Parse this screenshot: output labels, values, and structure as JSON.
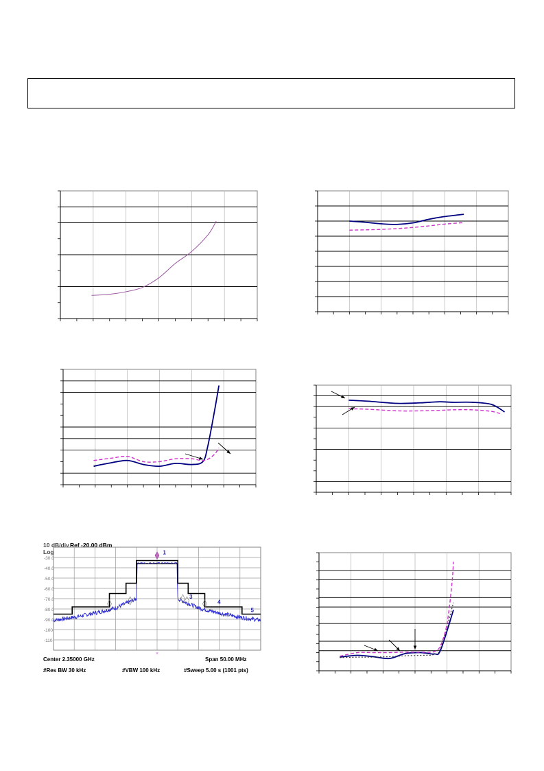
{
  "colors": {
    "navy": "#000080",
    "magenta": "#cc33cc",
    "purple": "#99569f",
    "blue_trace": "#2a2ad0",
    "grid_major": "#000000",
    "grid_minor": "#bdbdbd",
    "spectrum_grid": "#9a9a9a",
    "spectrum_border": "#808080"
  },
  "header": {
    "text": ""
  },
  "spectrum": {
    "scale_label": "10 dB/div",
    "ref_label": "Ref -20.00 dBm",
    "log_label": "Log",
    "y_ticks": [
      "-30.0",
      "-40.0",
      "-50.0",
      "-60.0",
      "-70.0",
      "-80.0",
      "-90.0",
      "-100",
      "-110"
    ],
    "marker_labels": [
      "1",
      "3",
      "4",
      "5"
    ],
    "center_label": "Center 2.35000 GHz",
    "span_label": "Span 50.00 MHz",
    "res_bw_label": "#Res BW 30 kHz",
    "vbw_label": "#VBW 100 kHz",
    "sweep_label": "#Sweep  5.00 s (1001 pts)"
  },
  "chart_data": [
    {
      "type": "line",
      "id": "chart-top-left",
      "xlim": [
        0,
        6
      ],
      "ylim": [
        0,
        8
      ],
      "series": [
        {
          "color": "purple",
          "points": [
            [
              0.95,
              1.45
            ],
            [
              1.5,
              1.52
            ],
            [
              2.0,
              1.68
            ],
            [
              2.5,
              1.95
            ],
            [
              3.0,
              2.55
            ],
            [
              3.5,
              3.45
            ],
            [
              4.0,
              4.2
            ],
            [
              4.5,
              5.25
            ],
            [
              4.75,
              6.1
            ]
          ]
        }
      ]
    },
    {
      "type": "line",
      "id": "chart-top-right",
      "xlim": [
        0,
        6
      ],
      "ylim": [
        0,
        8
      ],
      "series": [
        {
          "color": "navy",
          "style": "solid",
          "points": [
            [
              1.0,
              6.0
            ],
            [
              1.5,
              5.92
            ],
            [
              2.0,
              5.82
            ],
            [
              2.5,
              5.78
            ],
            [
              3.0,
              5.88
            ],
            [
              3.5,
              6.12
            ],
            [
              4.0,
              6.3
            ],
            [
              4.6,
              6.45
            ]
          ]
        },
        {
          "color": "magenta",
          "style": "dashed",
          "points": [
            [
              1.0,
              5.4
            ],
            [
              1.5,
              5.42
            ],
            [
              2.0,
              5.45
            ],
            [
              2.5,
              5.5
            ],
            [
              3.0,
              5.58
            ],
            [
              3.5,
              5.68
            ],
            [
              4.0,
              5.8
            ],
            [
              4.6,
              5.9
            ]
          ]
        }
      ]
    },
    {
      "type": "line",
      "id": "chart-mid-left",
      "xlim": [
        0,
        6
      ],
      "ylim": [
        0,
        10
      ],
      "series": [
        {
          "color": "navy",
          "style": "solid",
          "points": [
            [
              0.95,
              1.6
            ],
            [
              1.4,
              1.85
            ],
            [
              2.0,
              2.1
            ],
            [
              2.5,
              1.75
            ],
            [
              3.0,
              1.6
            ],
            [
              3.5,
              1.85
            ],
            [
              4.0,
              1.75
            ],
            [
              4.35,
              2.0
            ],
            [
              4.5,
              3.3
            ],
            [
              4.7,
              6.2
            ],
            [
              4.85,
              8.6
            ]
          ]
        },
        {
          "color": "magenta",
          "style": "dashed",
          "points": [
            [
              0.95,
              2.1
            ],
            [
              1.5,
              2.3
            ],
            [
              2.0,
              2.45
            ],
            [
              2.5,
              2.0
            ],
            [
              3.0,
              2.0
            ],
            [
              3.5,
              2.25
            ],
            [
              4.0,
              2.25
            ],
            [
              4.4,
              2.1
            ],
            [
              4.7,
              2.6
            ],
            [
              4.85,
              3.2
            ]
          ]
        }
      ]
    },
    {
      "type": "line",
      "id": "chart-mid-right",
      "xlim": [
        0,
        6
      ],
      "ylim": [
        0,
        10
      ],
      "series": [
        {
          "color": "navy",
          "style": "solid",
          "points": [
            [
              1.0,
              8.6
            ],
            [
              1.6,
              8.5
            ],
            [
              2.5,
              8.3
            ],
            [
              3.2,
              8.35
            ],
            [
              3.8,
              8.45
            ],
            [
              4.2,
              8.4
            ],
            [
              4.8,
              8.4
            ],
            [
              5.4,
              8.2
            ],
            [
              5.8,
              7.5
            ]
          ]
        },
        {
          "color": "magenta",
          "style": "dashed",
          "points": [
            [
              1.0,
              7.8
            ],
            [
              1.6,
              7.75
            ],
            [
              2.5,
              7.6
            ],
            [
              3.2,
              7.6
            ],
            [
              3.8,
              7.65
            ],
            [
              4.2,
              7.7
            ],
            [
              4.8,
              7.7
            ],
            [
              5.4,
              7.55
            ],
            [
              5.7,
              7.3
            ]
          ]
        }
      ]
    },
    {
      "type": "line",
      "id": "chart-bottom-right",
      "xlim": [
        0,
        6
      ],
      "ylim": [
        0,
        13
      ],
      "series": [
        {
          "color": "navy",
          "style": "solid",
          "points": [
            [
              0.65,
              1.5
            ],
            [
              1.2,
              1.7
            ],
            [
              1.7,
              1.55
            ],
            [
              2.2,
              1.35
            ],
            [
              2.7,
              1.9
            ],
            [
              3.2,
              2.0
            ],
            [
              3.6,
              1.85
            ],
            [
              3.8,
              2.3
            ],
            [
              4.2,
              6.7
            ]
          ]
        },
        {
          "color": "#333333",
          "style": "dotted",
          "points": [
            [
              0.65,
              1.45
            ],
            [
              1.2,
              1.5
            ],
            [
              1.7,
              1.5
            ],
            [
              2.2,
              1.55
            ],
            [
              2.7,
              1.65
            ],
            [
              3.2,
              1.7
            ],
            [
              3.6,
              1.8
            ],
            [
              3.8,
              2.5
            ],
            [
              4.2,
              7.5
            ]
          ]
        },
        {
          "color": "magenta",
          "style": "dashed",
          "points": [
            [
              0.65,
              1.6
            ],
            [
              1.2,
              2.0
            ],
            [
              1.7,
              2.0
            ],
            [
              2.2,
              2.0
            ],
            [
              2.7,
              2.05
            ],
            [
              3.2,
              2.05
            ],
            [
              3.6,
              2.1
            ],
            [
              3.8,
              2.8
            ],
            [
              4.0,
              5.2
            ],
            [
              4.15,
              9.5
            ],
            [
              4.2,
              12.0
            ]
          ]
        }
      ]
    },
    {
      "type": "line",
      "id": "spectrum-plot",
      "xlim": [
        -25,
        25
      ],
      "ylim": [
        -120,
        -20
      ],
      "xlabel": "",
      "ylabel": "",
      "series": [
        {
          "color": "black",
          "style": "mask",
          "points": [
            [
              -25,
              -85
            ],
            [
              -20.5,
              -85
            ],
            [
              -20.5,
              -78
            ],
            [
              -11.5,
              -78
            ],
            [
              -11.5,
              -65
            ],
            [
              -7.5,
              -65
            ],
            [
              -7.5,
              -55
            ],
            [
              -5,
              -55
            ],
            [
              -5,
              -33
            ],
            [
              5,
              -33
            ],
            [
              5,
              -55
            ],
            [
              7.5,
              -55
            ],
            [
              7.5,
              -65
            ],
            [
              11.5,
              -65
            ],
            [
              11.5,
              -78
            ],
            [
              20.5,
              -78
            ],
            [
              20.5,
              -85
            ],
            [
              25,
              -85
            ]
          ]
        },
        {
          "color": "blue_trace",
          "style": "trace",
          "points": [
            [
              -25,
              -91
            ],
            [
              -20,
              -88
            ],
            [
              -15,
              -84
            ],
            [
              -10,
              -79
            ],
            [
              -6,
              -72
            ],
            [
              -5,
              -70
            ],
            [
              -4.8,
              -35.5
            ],
            [
              4.8,
              -35.5
            ],
            [
              5,
              -70
            ],
            [
              6,
              -72
            ],
            [
              10,
              -79
            ],
            [
              15,
              -84
            ],
            [
              20,
              -88
            ],
            [
              25,
              -91
            ]
          ]
        }
      ]
    }
  ]
}
